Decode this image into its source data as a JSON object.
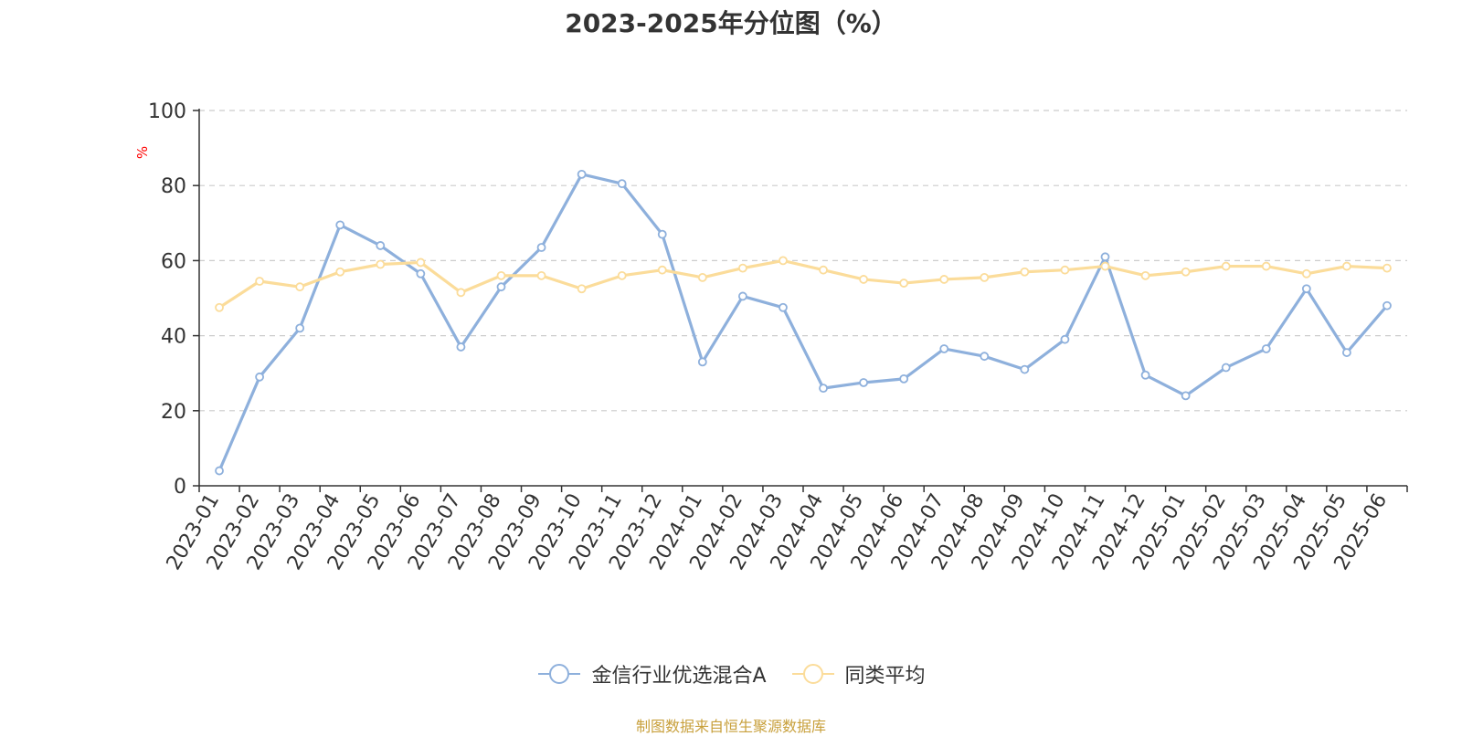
{
  "chart_data": {
    "type": "line",
    "title": "2023-2025年分位图（%）",
    "ylabel": "%",
    "ylim": [
      0,
      100
    ],
    "yticks": [
      "0",
      "20",
      "40",
      "60",
      "80",
      "100"
    ],
    "grid": true,
    "legend_position": "bottom",
    "categories": [
      "2023-01",
      "2023-02",
      "2023-03",
      "2023-04",
      "2023-05",
      "2023-06",
      "2023-07",
      "2023-08",
      "2023-09",
      "2023-10",
      "2023-11",
      "2023-12",
      "2024-01",
      "2024-02",
      "2024-03",
      "2024-04",
      "2024-05",
      "2024-06",
      "2024-07",
      "2024-08",
      "2024-09",
      "2024-10",
      "2024-11",
      "2024-12",
      "2025-01",
      "2025-02",
      "2025-03",
      "2025-04",
      "2025-05",
      "2025-06"
    ],
    "series": [
      {
        "name": "金信行业优选混合A",
        "color": "#8eb0dc",
        "values": [
          4,
          29,
          42,
          69.5,
          64,
          56.5,
          37,
          53,
          63.5,
          83,
          80.5,
          67,
          33,
          50.5,
          47.5,
          26,
          27.5,
          28.5,
          36.5,
          34.5,
          31,
          39,
          61,
          29.5,
          24,
          31.5,
          36.5,
          52.5,
          35.5,
          48
        ]
      },
      {
        "name": "同类平均",
        "color": "#fbdc9a",
        "values": [
          47.5,
          54.5,
          53,
          57,
          59,
          59.5,
          51.5,
          56,
          56,
          52.5,
          56,
          57.5,
          55.5,
          58,
          60,
          57.5,
          55,
          54,
          55,
          55.5,
          57,
          57.5,
          58.5,
          56,
          57,
          58.5,
          58.5,
          56.5,
          58.5,
          58
        ]
      }
    ]
  },
  "source_note": "制图数据来自恒生聚源数据库"
}
